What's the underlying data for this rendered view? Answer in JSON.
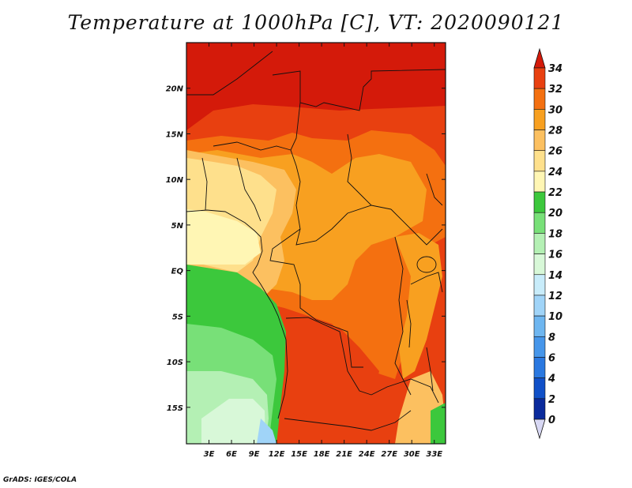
{
  "title": "Temperature at 1000hPa [C], VT: 2020090121",
  "credit": "GrADS: IGES/COLA",
  "map": {
    "lon_range": [
      0,
      34.5
    ],
    "lat_range": [
      -19,
      25
    ],
    "x_ticks": [
      {
        "value": 3,
        "label": "3E"
      },
      {
        "value": 6,
        "label": "6E"
      },
      {
        "value": 9,
        "label": "9E"
      },
      {
        "value": 12,
        "label": "12E"
      },
      {
        "value": 15,
        "label": "15E"
      },
      {
        "value": 18,
        "label": "18E"
      },
      {
        "value": 21,
        "label": "21E"
      },
      {
        "value": 24,
        "label": "24E"
      },
      {
        "value": 27,
        "label": "27E"
      },
      {
        "value": 30,
        "label": "30E"
      },
      {
        "value": 33,
        "label": "33E"
      }
    ],
    "y_ticks": [
      {
        "value": 20,
        "label": "20N"
      },
      {
        "value": 15,
        "label": "15N"
      },
      {
        "value": 10,
        "label": "10N"
      },
      {
        "value": 5,
        "label": "5N"
      },
      {
        "value": 0,
        "label": "EQ"
      },
      {
        "value": -5,
        "label": "5S"
      },
      {
        "value": -10,
        "label": "10S"
      },
      {
        "value": -15,
        "label": "15S"
      }
    ]
  },
  "colorbar": {
    "levels": [
      "0",
      "2",
      "4",
      "6",
      "8",
      "10",
      "12",
      "14",
      "16",
      "18",
      "20",
      "22",
      "24",
      "26",
      "28",
      "30",
      "32",
      "34"
    ],
    "colors": [
      "#080a78",
      "#0a2a9c",
      "#1050c8",
      "#2a78e0",
      "#4696ea",
      "#6eb6f0",
      "#a0d4f8",
      "#c8ecfa",
      "#d8f8d8",
      "#b4f0b4",
      "#78e078",
      "#3cc83c",
      "#fff6b4",
      "#fee08c",
      "#fcc060",
      "#f8a020",
      "#f47010",
      "#e84010",
      "#d41a0a"
    ]
  }
}
